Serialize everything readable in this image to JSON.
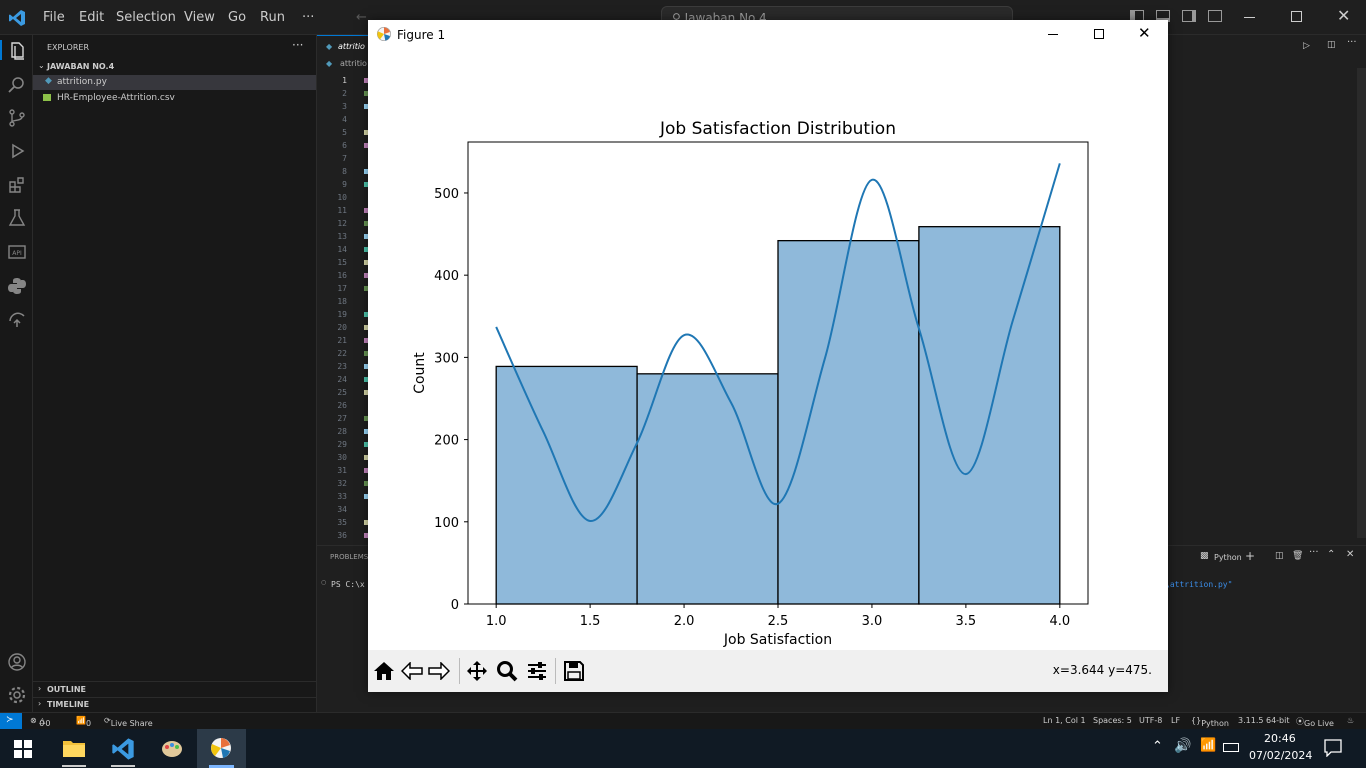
{
  "menu": [
    "File",
    "Edit",
    "Selection",
    "View",
    "Go",
    "Run",
    "···"
  ],
  "search": {
    "placeholder": "Jawaban No.4"
  },
  "explorer": {
    "title": "EXPLORER",
    "folder": "JAWABAN NO.4",
    "files": [
      "attrition.py",
      "HR-Employee-Attrition.csv"
    ],
    "outline": "OUTLINE",
    "timeline": "TIMELINE"
  },
  "editor": {
    "tab_label": "attritio",
    "breadcrumb": "attritio",
    "line_numbers": [
      "1",
      "2",
      "3",
      "4",
      "5",
      "6",
      "7",
      "8",
      "9",
      "10",
      "11",
      "12",
      "13",
      "14",
      "15",
      "16",
      "17",
      "18",
      "19",
      "20",
      "21",
      "22",
      "23",
      "24",
      "25",
      "26",
      "27",
      "28",
      "29",
      "30",
      "31",
      "32",
      "33",
      "34",
      "35",
      "36"
    ]
  },
  "panel": {
    "tab": "PROBLEMS",
    "terminal_left": "PS C:\\x",
    "terminal_right": "\\attrition.py\"",
    "shell": "Python"
  },
  "statusbar": {
    "errors": "0",
    "warnings": "0",
    "ports": "0",
    "live_share": "Live Share",
    "position": "Ln 1, Col 1",
    "spaces": "Spaces: 5",
    "encoding": "UTF-8",
    "eol": "LF",
    "language": "Python",
    "interpreter": "3.11.5 64-bit",
    "go_live": "Go Live"
  },
  "taskbar": {
    "time": "20:46",
    "date": "07/02/2024"
  },
  "figure": {
    "window_title": "Figure 1",
    "coords": "x=3.644 y=475."
  },
  "chart_data": {
    "type": "bar",
    "title": "Job Satisfaction Distribution",
    "xlabel": "Job Satisfaction",
    "ylabel": "Count",
    "bins": [
      [
        1.0,
        1.75
      ],
      [
        1.75,
        2.5
      ],
      [
        2.5,
        3.25
      ],
      [
        3.25,
        4.0
      ]
    ],
    "values": [
      289,
      280,
      442,
      459
    ],
    "xlim": [
      0.85,
      4.15
    ],
    "ylim": [
      0,
      562
    ],
    "xticks": [
      1.0,
      1.5,
      2.0,
      2.5,
      3.0,
      3.5,
      4.0
    ],
    "xtick_labels": [
      "1.0",
      "1.5",
      "2.0",
      "2.5",
      "3.0",
      "3.5",
      "4.0"
    ],
    "yticks": [
      0,
      100,
      200,
      300,
      400,
      500
    ],
    "ytick_labels": [
      "0",
      "100",
      "200",
      "300",
      "400",
      "500"
    ],
    "kde": {
      "x": [
        1.0,
        1.25,
        1.5,
        1.75,
        2.0,
        2.25,
        2.5,
        2.75,
        3.0,
        3.25,
        3.5,
        3.75,
        4.0
      ],
      "y": [
        337,
        210,
        101,
        196,
        327,
        245,
        122,
        299,
        516,
        335,
        158,
        345,
        536
      ]
    },
    "bar_color": "#8fb9da",
    "line_color": "#1f77b4"
  }
}
